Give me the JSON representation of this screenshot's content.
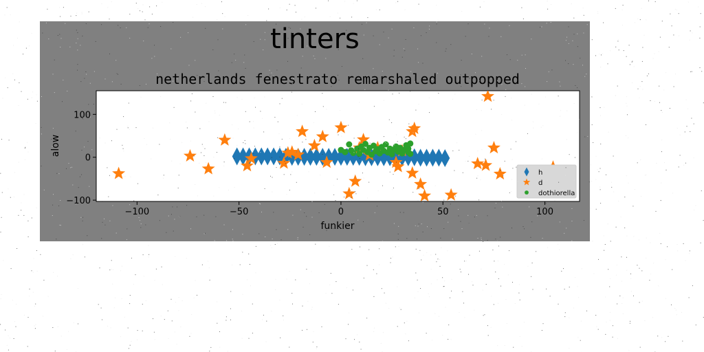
{
  "figure": {
    "suptitle": "tinters",
    "background": "#ffffff",
    "panel_color": "#808080",
    "plot_bg": "#ffffff"
  },
  "chart_data": {
    "type": "scatter",
    "title": "netherlands fenestrato remarshaled outpopped",
    "xlabel": "funkier",
    "ylabel": "alow",
    "xlim": [
      -120,
      117
    ],
    "ylim": [
      -103,
      155
    ],
    "xticks": [
      -100,
      -50,
      0,
      50,
      100
    ],
    "yticks": [
      -100,
      0,
      100
    ],
    "xtick_labels": [
      "−100",
      "−50",
      "0",
      "50",
      "100"
    ],
    "ytick_labels": [
      "−100",
      "0",
      "100"
    ],
    "grid": false,
    "legend_position": "lower-right",
    "series": [
      {
        "name": "h",
        "marker": "diamond",
        "color": "#1f77b4",
        "points": [
          [
            -51,
            2
          ],
          [
            -48,
            2
          ],
          [
            -45,
            2
          ],
          [
            -42,
            2
          ],
          [
            -39,
            2
          ],
          [
            -36,
            2
          ],
          [
            -33,
            2
          ],
          [
            -30,
            2
          ],
          [
            -27,
            1
          ],
          [
            -24,
            1
          ],
          [
            -21,
            1
          ],
          [
            -18,
            1
          ],
          [
            -15,
            1
          ],
          [
            -12,
            1
          ],
          [
            -9,
            1
          ],
          [
            -6,
            1
          ],
          [
            -3,
            1
          ],
          [
            0,
            1
          ],
          [
            3,
            1
          ],
          [
            6,
            1
          ],
          [
            9,
            1
          ],
          [
            12,
            0
          ],
          [
            15,
            0
          ],
          [
            18,
            0
          ],
          [
            21,
            0
          ],
          [
            24,
            0
          ],
          [
            27,
            0
          ],
          [
            30,
            0
          ],
          [
            33,
            0
          ],
          [
            36,
            0
          ],
          [
            39,
            -1
          ],
          [
            42,
            -1
          ],
          [
            45,
            -1
          ],
          [
            48,
            -1
          ],
          [
            51,
            -2
          ]
        ]
      },
      {
        "name": "d",
        "marker": "star",
        "color": "#ff7f0e",
        "points": [
          [
            -109,
            -38
          ],
          [
            -74,
            3
          ],
          [
            -65,
            -27
          ],
          [
            -57,
            40
          ],
          [
            -46,
            -20
          ],
          [
            -44,
            -3
          ],
          [
            -28,
            -14
          ],
          [
            -26,
            10
          ],
          [
            -24,
            12
          ],
          [
            -21,
            6
          ],
          [
            -19,
            60
          ],
          [
            -13,
            27
          ],
          [
            -9,
            48
          ],
          [
            -7,
            -12
          ],
          [
            0,
            69
          ],
          [
            4,
            -85
          ],
          [
            7,
            -56
          ],
          [
            9,
            22
          ],
          [
            11,
            41
          ],
          [
            14,
            5
          ],
          [
            18,
            22
          ],
          [
            27,
            -12
          ],
          [
            28,
            -22
          ],
          [
            30,
            15
          ],
          [
            35,
            60
          ],
          [
            36,
            67
          ],
          [
            35,
            -37
          ],
          [
            39,
            -63
          ],
          [
            41,
            -90
          ],
          [
            54,
            -88
          ],
          [
            67,
            -15
          ],
          [
            71,
            -19
          ],
          [
            72,
            142
          ],
          [
            75,
            22
          ],
          [
            78,
            -39
          ],
          [
            104,
            -23
          ]
        ]
      },
      {
        "name": "dothiorella",
        "marker": "circle",
        "color": "#2ca02c",
        "points": [
          [
            0,
            17
          ],
          [
            2,
            12
          ],
          [
            4,
            30
          ],
          [
            5,
            16
          ],
          [
            6,
            10
          ],
          [
            8,
            20
          ],
          [
            9,
            8
          ],
          [
            10,
            25
          ],
          [
            11,
            17
          ],
          [
            12,
            31
          ],
          [
            13,
            12
          ],
          [
            14,
            22
          ],
          [
            15,
            6
          ],
          [
            16,
            27
          ],
          [
            17,
            14
          ],
          [
            18,
            19
          ],
          [
            19,
            9
          ],
          [
            20,
            24
          ],
          [
            21,
            15
          ],
          [
            22,
            30
          ],
          [
            23,
            11
          ],
          [
            24,
            20
          ],
          [
            25,
            7
          ],
          [
            26,
            18
          ],
          [
            27,
            25
          ],
          [
            28,
            13
          ],
          [
            29,
            22
          ],
          [
            30,
            9
          ],
          [
            31,
            17
          ],
          [
            32,
            28
          ],
          [
            33,
            12
          ],
          [
            33,
            20
          ],
          [
            34,
            32
          ],
          [
            34,
            8
          ]
        ]
      }
    ]
  }
}
